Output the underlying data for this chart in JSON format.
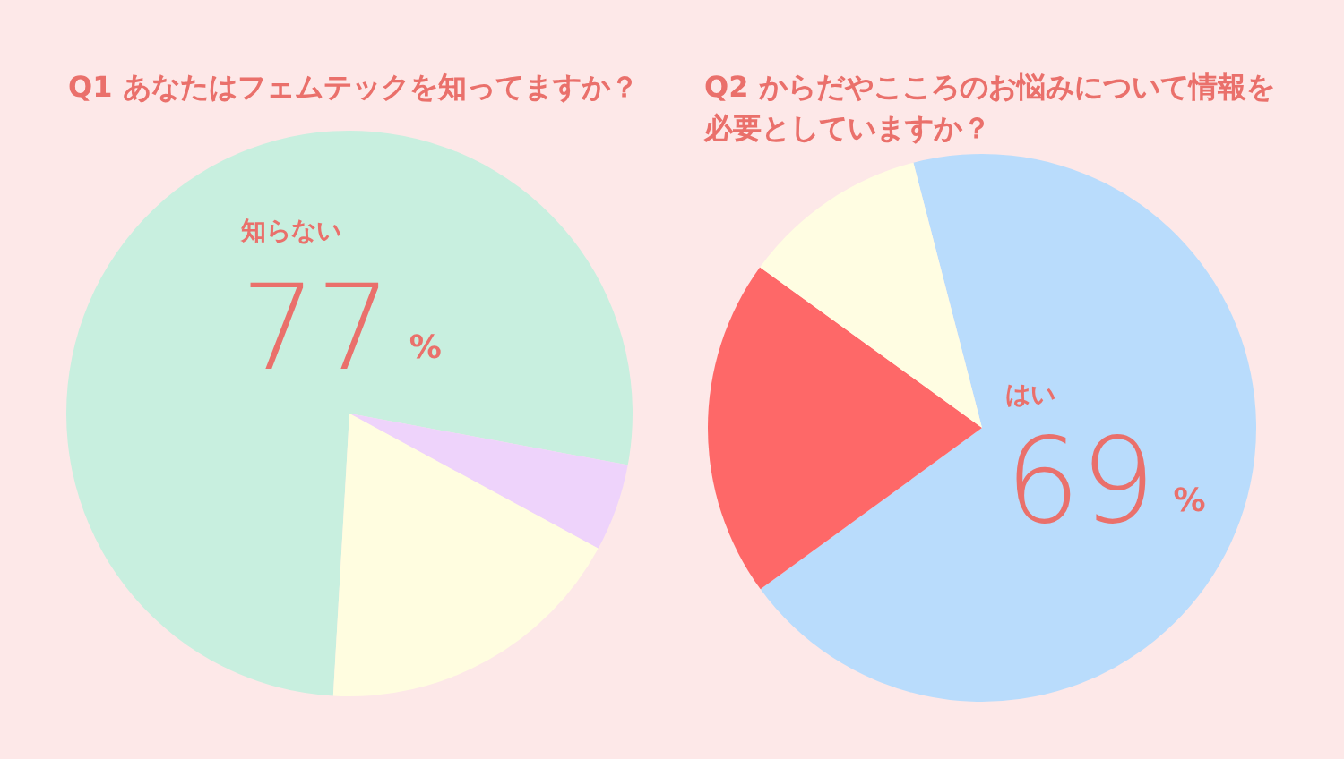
{
  "chart_data": [
    {
      "type": "pie",
      "title": "Q1 あなたはフェムテックを知ってますか？",
      "categories": [
        "知らない",
        null,
        null
      ],
      "values": [
        77,
        5,
        18
      ],
      "colors": [
        "#c8efdf",
        "#eed3fb",
        "#fffde0"
      ],
      "value_labels": [
        "77%",
        null,
        null
      ]
    },
    {
      "type": "pie",
      "title": "Q2 からだやこころのお悩みについて情報を必要としていますか？",
      "categories": [
        "はい",
        null,
        null
      ],
      "values": [
        69,
        20,
        11
      ],
      "colors": [
        "#b9dcfc",
        "#fe6868",
        "#fffde2"
      ],
      "value_labels": [
        "69%",
        null,
        null
      ]
    }
  ]
}
